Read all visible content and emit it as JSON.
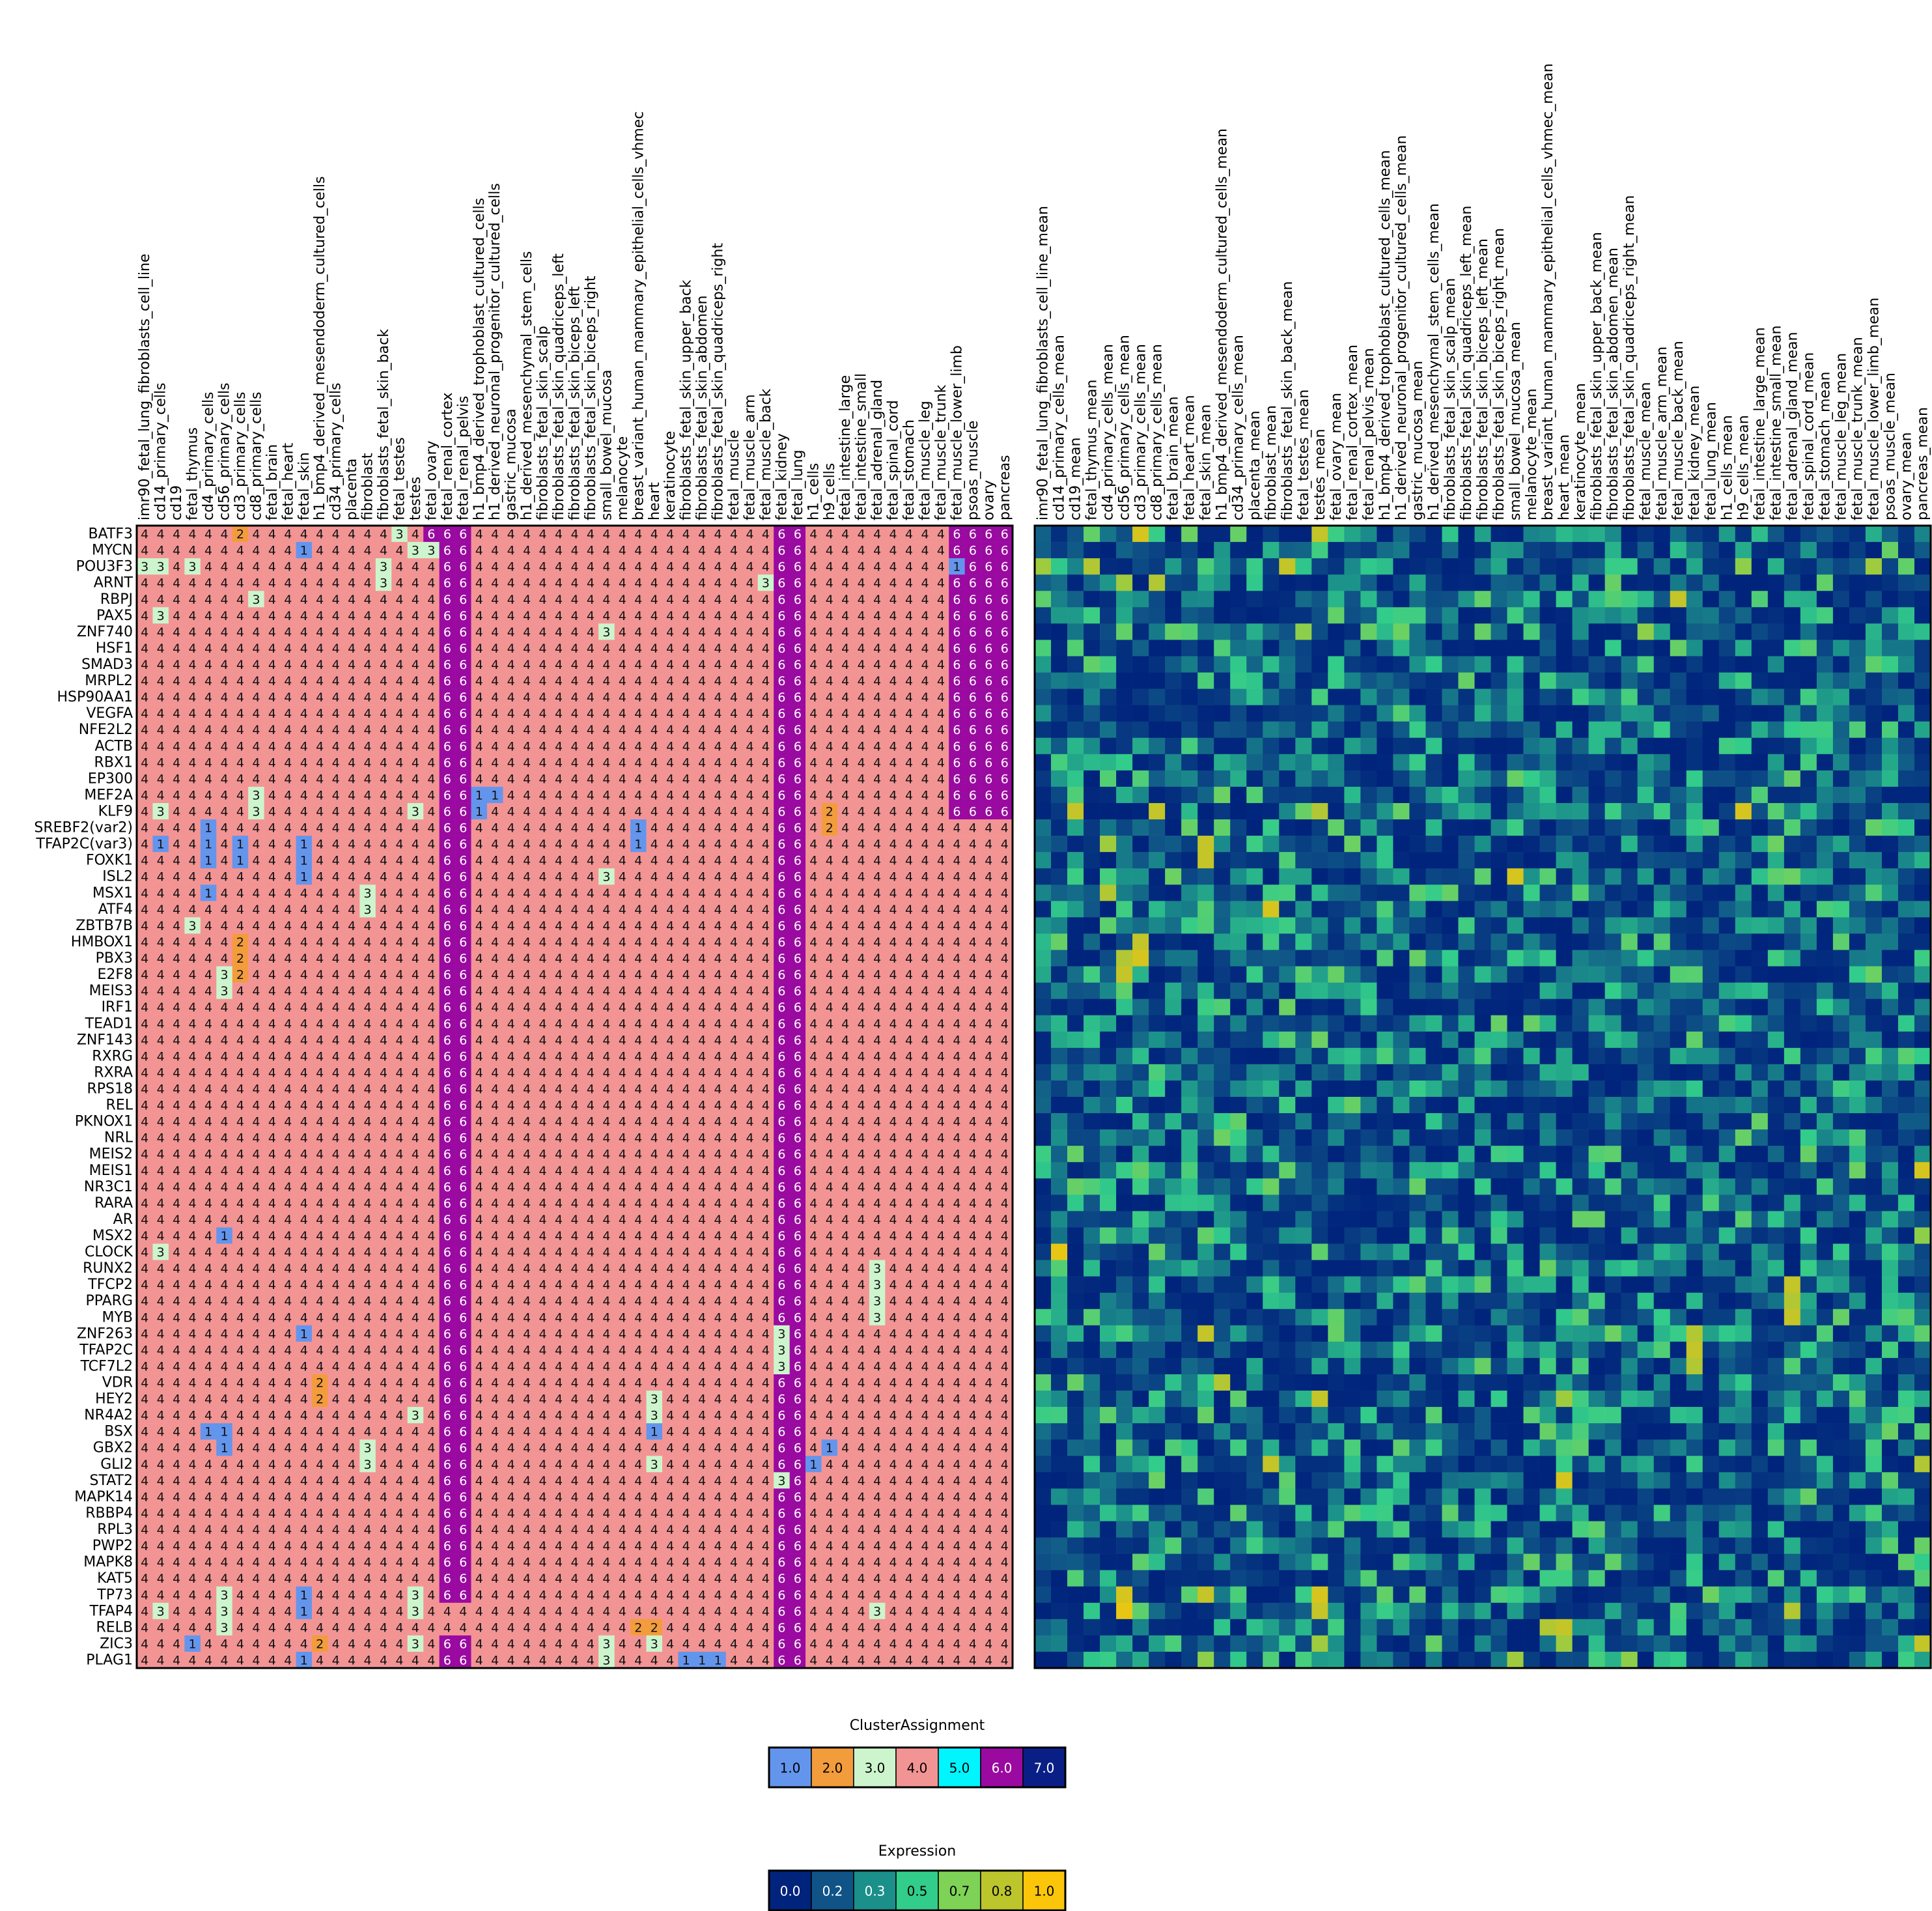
{
  "chart_data": [
    {
      "type": "heatmap",
      "title": "",
      "x_labels": [
        "imr90_fetal_lung_fibroblasts_cell_line",
        "cd14_primary_cells",
        "cd19",
        "fetal_thymus",
        "cd4_primary_cells",
        "cd56_primary_cells",
        "cd3_primary_cells",
        "cd8_primary_cells",
        "fetal_brain",
        "fetal_heart",
        "fetal_skin",
        "h1_bmp4_derived_mesendoderm_cultured_cells",
        "cd34_primary_cells",
        "placenta",
        "fibroblast",
        "fibroblasts_fetal_skin_back",
        "fetal_testes",
        "testes",
        "fetal_ovary",
        "fetal_renal_cortex",
        "fetal_renal_pelvis",
        "h1_bmp4_derived_trophoblast_cultured_cells",
        "h1_derived_neuronal_progenitor_cultured_cells",
        "gastric_mucosa",
        "h1_derived_mesenchymal_stem_cells",
        "fibroblasts_fetal_skin_scalp",
        "fibroblasts_fetal_skin_quadriceps_left",
        "fibroblasts_fetal_skin_biceps_left",
        "fibroblasts_fetal_skin_biceps_right",
        "small_bowel_mucosa",
        "melanocyte",
        "breast_variant_human_mammary_epithelial_cells_vhmec",
        "heart",
        "keratinocyte",
        "fibroblasts_fetal_skin_upper_back",
        "fibroblasts_fetal_skin_abdomen",
        "fibroblasts_fetal_skin_quadriceps_right",
        "fetal_muscle",
        "fetal_muscle_arm",
        "fetal_muscle_back",
        "fetal_kidney",
        "fetal_lung",
        "h1_cells",
        "h9_cells",
        "fetal_intestine_large",
        "fetal_intestine_small",
        "fetal_adrenal_gland",
        "fetal_spinal_cord",
        "fetal_stomach",
        "fetal_muscle_leg",
        "fetal_muscle_trunk",
        "fetal_muscle_lower_limb",
        "psoas_muscle",
        "ovary",
        "pancreas"
      ],
      "y_labels": [
        "BATF3",
        "MYCN",
        "POU3F3",
        "ARNT",
        "RBPJ",
        "PAX5",
        "ZNF740",
        "HSF1",
        "SMAD3",
        "MRPL2",
        "HSP90AA1",
        "VEGFA",
        "NFE2L2",
        "ACTB",
        "RBX1",
        "EP300",
        "MEF2A",
        "KLF9",
        "SREBF2(var2)",
        "TFAP2C(var3)",
        "FOXK1",
        "ISL2",
        "MSX1",
        "ATF4",
        "ZBTB7B",
        "HMBOX1",
        "PBX3",
        "E2F8",
        "MEIS3",
        "IRF1",
        "TEAD1",
        "ZNF143",
        "RXRG",
        "RXRA",
        "RPS18",
        "REL",
        "PKNOX1",
        "NRL",
        "MEIS2",
        "MEIS1",
        "NR3C1",
        "RARA",
        "AR",
        "MSX2",
        "CLOCK",
        "RUNX2",
        "TFCP2",
        "PPARG",
        "MYB",
        "ZNF263",
        "TFAP2C",
        "TCF7L2",
        "VDR",
        "HEY2",
        "NR4A2",
        "BSX",
        "GBX2",
        "GLI2",
        "STAT2",
        "MAPK14",
        "RBBP4",
        "RPL3",
        "PWP2",
        "MAPK8",
        "KAT5",
        "TP73",
        "TFAP4",
        "RELB",
        "ZIC3",
        "PLAG1"
      ],
      "default_value": 4,
      "column_runs": [
        {
          "col_start": 19,
          "col_end": 20,
          "row_start": 0,
          "row_end": 69,
          "value": 6
        },
        {
          "col_start": 40,
          "col_end": 41,
          "row_start": 0,
          "row_end": 69,
          "value": 6
        },
        {
          "col_start": 51,
          "col_end": 54,
          "row_start": 0,
          "row_end": 17,
          "value": 6
        },
        {
          "col_start": 18,
          "col_end": 18,
          "row_start": 0,
          "row_end": 1,
          "value": 6
        },
        {
          "col_start": 19,
          "col_end": 20,
          "row_start": 65,
          "row_end": 69,
          "value": 4
        }
      ],
      "overrides": [
        [
          0,
          6,
          2
        ],
        [
          0,
          16,
          3
        ],
        [
          1,
          10,
          1
        ],
        [
          1,
          17,
          3
        ],
        [
          1,
          18,
          3
        ],
        [
          2,
          0,
          3
        ],
        [
          2,
          1,
          3
        ],
        [
          2,
          3,
          3
        ],
        [
          2,
          15,
          3
        ],
        [
          2,
          51,
          1
        ],
        [
          3,
          15,
          3
        ],
        [
          3,
          39,
          3
        ],
        [
          4,
          7,
          3
        ],
        [
          5,
          1,
          3
        ],
        [
          6,
          29,
          3
        ],
        [
          16,
          7,
          3
        ],
        [
          16,
          21,
          1
        ],
        [
          16,
          22,
          1
        ],
        [
          17,
          1,
          3
        ],
        [
          17,
          7,
          3
        ],
        [
          17,
          17,
          3
        ],
        [
          17,
          21,
          1
        ],
        [
          17,
          43,
          2
        ],
        [
          18,
          4,
          1
        ],
        [
          18,
          31,
          1
        ],
        [
          18,
          43,
          2
        ],
        [
          19,
          1,
          1
        ],
        [
          19,
          4,
          1
        ],
        [
          19,
          6,
          1
        ],
        [
          19,
          10,
          1
        ],
        [
          19,
          31,
          1
        ],
        [
          20,
          4,
          1
        ],
        [
          20,
          6,
          1
        ],
        [
          20,
          10,
          1
        ],
        [
          21,
          10,
          1
        ],
        [
          21,
          29,
          3
        ],
        [
          22,
          4,
          1
        ],
        [
          22,
          14,
          3
        ],
        [
          23,
          14,
          3
        ],
        [
          24,
          3,
          3
        ],
        [
          25,
          6,
          2
        ],
        [
          26,
          6,
          2
        ],
        [
          27,
          5,
          3
        ],
        [
          27,
          6,
          2
        ],
        [
          28,
          5,
          3
        ],
        [
          43,
          5,
          1
        ],
        [
          44,
          1,
          3
        ],
        [
          45,
          46,
          3
        ],
        [
          46,
          46,
          3
        ],
        [
          47,
          46,
          3
        ],
        [
          48,
          46,
          3
        ],
        [
          49,
          10,
          1
        ],
        [
          49,
          40,
          3
        ],
        [
          50,
          40,
          3
        ],
        [
          51,
          40,
          3
        ],
        [
          52,
          11,
          2
        ],
        [
          53,
          11,
          2
        ],
        [
          53,
          32,
          3
        ],
        [
          54,
          17,
          3
        ],
        [
          54,
          32,
          3
        ],
        [
          55,
          4,
          1
        ],
        [
          55,
          5,
          1
        ],
        [
          55,
          32,
          1
        ],
        [
          56,
          5,
          1
        ],
        [
          56,
          14,
          3
        ],
        [
          56,
          42,
          4
        ],
        [
          56,
          43,
          1
        ],
        [
          57,
          14,
          3
        ],
        [
          57,
          32,
          3
        ],
        [
          57,
          42,
          1
        ],
        [
          58,
          40,
          3
        ],
        [
          65,
          5,
          3
        ],
        [
          65,
          10,
          1
        ],
        [
          65,
          17,
          3
        ],
        [
          65,
          19,
          6
        ],
        [
          65,
          20,
          6
        ],
        [
          66,
          1,
          3
        ],
        [
          66,
          5,
          3
        ],
        [
          66,
          10,
          1
        ],
        [
          66,
          17,
          3
        ],
        [
          66,
          46,
          3
        ],
        [
          67,
          5,
          3
        ],
        [
          67,
          31,
          2
        ],
        [
          67,
          32,
          2
        ],
        [
          68,
          3,
          1
        ],
        [
          68,
          11,
          2
        ],
        [
          68,
          17,
          3
        ],
        [
          68,
          29,
          3
        ],
        [
          68,
          32,
          3
        ],
        [
          68,
          19,
          6
        ],
        [
          68,
          20,
          6
        ],
        [
          69,
          10,
          1
        ],
        [
          69,
          29,
          3
        ],
        [
          69,
          34,
          1
        ],
        [
          69,
          35,
          1
        ],
        [
          69,
          36,
          1
        ],
        [
          69,
          19,
          6
        ],
        [
          69,
          20,
          6
        ]
      ],
      "legend": {
        "title": "ClusterAssignment",
        "position": "bottom",
        "values": [
          "1.0",
          "2.0",
          "3.0",
          "4.0",
          "5.0",
          "6.0",
          "7.0"
        ]
      },
      "colors": {
        "1.0": "#6495ed",
        "2.0": "#f39c3c",
        "3.0": "#cdf5cd",
        "4.0": "#f39494",
        "5.0": "#00f5ff",
        "6.0": "#9a0aa0",
        "7.0": "#0a1f86"
      }
    },
    {
      "type": "heatmap",
      "title": "",
      "x_labels": [
        "imr90_fetal_lung_fibroblasts_cell_line_mean",
        "cd14_primary_cells_mean",
        "cd19_mean",
        "fetal_thymus_mean",
        "cd4_primary_cells_mean",
        "cd56_primary_cells_mean",
        "cd3_primary_cells_mean",
        "cd8_primary_cells_mean",
        "fetal_brain_mean",
        "fetal_heart_mean",
        "fetal_skin_mean",
        "h1_bmp4_derived_mesendoderm_cultured_cells_mean",
        "cd34_primary_cells_mean",
        "placenta_mean",
        "fibroblast_mean",
        "fibroblasts_fetal_skin_back_mean",
        "fetal_testes_mean",
        "testes_mean",
        "fetal_ovary_mean",
        "fetal_renal_cortex_mean",
        "fetal_renal_pelvis_mean",
        "h1_bmp4_derived_trophoblast_cultured_cells_mean",
        "h1_derived_neuronal_progenitor_cultured_cells_mean",
        "gastric_mucosa_mean",
        "h1_derived_mesenchymal_stem_cells_mean",
        "fibroblasts_fetal_skin_scalp_mean",
        "fibroblasts_fetal_skin_quadriceps_left_mean",
        "fibroblasts_fetal_skin_biceps_left_mean",
        "fibroblasts_fetal_skin_biceps_right_mean",
        "small_bowel_mucosa_mean",
        "melanocyte_mean",
        "breast_variant_human_mammary_epithelial_cells_vhmec_mean",
        "heart_mean",
        "keratinocyte_mean",
        "fibroblasts_fetal_skin_upper_back_mean",
        "fibroblasts_fetal_skin_abdomen_mean",
        "fibroblasts_fetal_skin_quadriceps_right_mean",
        "fetal_muscle_mean",
        "fetal_muscle_arm_mean",
        "fetal_muscle_back_mean",
        "fetal_kidney_mean",
        "fetal_lung_mean",
        "h1_cells_mean",
        "h9_cells_mean",
        "fetal_intestine_large_mean",
        "fetal_intestine_small_mean",
        "fetal_adrenal_gland_mean",
        "fetal_spinal_cord_mean",
        "fetal_stomach_mean",
        "fetal_muscle_leg_mean",
        "fetal_muscle_trunk_mean",
        "fetal_muscle_lower_limb_mean",
        "psoas_muscle_mean",
        "ovary_mean",
        "pancreas_mean"
      ],
      "y_labels": "same as cluster heatmap rows",
      "value_range": [
        0.0,
        1.0
      ],
      "generation_seed": 7,
      "highlights": [
        [
          0,
          6,
          0.9
        ],
        [
          0,
          17,
          0.85
        ],
        [
          2,
          0,
          0.75
        ],
        [
          2,
          3,
          0.8
        ],
        [
          2,
          15,
          0.85
        ],
        [
          2,
          43,
          0.7
        ],
        [
          2,
          51,
          0.75
        ],
        [
          3,
          5,
          0.75
        ],
        [
          3,
          7,
          0.8
        ],
        [
          4,
          39,
          0.85
        ],
        [
          6,
          16,
          0.7
        ],
        [
          6,
          37,
          0.7
        ],
        [
          17,
          2,
          0.85
        ],
        [
          17,
          7,
          0.85
        ],
        [
          17,
          17,
          0.8
        ],
        [
          17,
          43,
          0.9
        ],
        [
          19,
          4,
          0.75
        ],
        [
          19,
          10,
          0.85
        ],
        [
          20,
          10,
          0.85
        ],
        [
          21,
          29,
          0.9
        ],
        [
          22,
          4,
          0.8
        ],
        [
          23,
          14,
          0.9
        ],
        [
          25,
          6,
          0.85
        ],
        [
          26,
          6,
          0.9
        ],
        [
          26,
          5,
          0.8
        ],
        [
          27,
          5,
          0.85
        ],
        [
          39,
          54,
          0.9
        ],
        [
          43,
          54,
          0.7
        ],
        [
          44,
          1,
          0.95
        ],
        [
          46,
          46,
          0.85
        ],
        [
          47,
          46,
          0.8
        ],
        [
          48,
          46,
          0.85
        ],
        [
          49,
          10,
          0.85
        ],
        [
          49,
          40,
          0.8
        ],
        [
          50,
          40,
          0.85
        ],
        [
          51,
          40,
          0.8
        ],
        [
          52,
          11,
          0.8
        ],
        [
          53,
          17,
          0.85
        ],
        [
          53,
          32,
          0.75
        ],
        [
          57,
          14,
          0.85
        ],
        [
          57,
          54,
          0.8
        ],
        [
          58,
          32,
          0.9
        ],
        [
          65,
          5,
          0.9
        ],
        [
          65,
          10,
          0.85
        ],
        [
          65,
          17,
          0.9
        ],
        [
          66,
          5,
          0.95
        ],
        [
          66,
          17,
          0.85
        ],
        [
          66,
          46,
          0.8
        ],
        [
          67,
          31,
          0.8
        ],
        [
          67,
          32,
          0.85
        ],
        [
          68,
          17,
          0.75
        ],
        [
          68,
          54,
          0.85
        ],
        [
          68,
          32,
          0.75
        ],
        [
          69,
          10,
          0.7
        ],
        [
          69,
          29,
          0.75
        ],
        [
          69,
          36,
          0.7
        ]
      ],
      "legend": {
        "title": "Expression",
        "position": "bottom",
        "values": [
          "0.0",
          "0.2",
          "0.3",
          "0.5",
          "0.7",
          "0.8",
          "1.0"
        ]
      },
      "colors": {
        "0.0": "#00237c",
        "0.2": "#0f5387",
        "0.3": "#1b8f8a",
        "0.5": "#32cc8b",
        "0.7": "#7ed255",
        "0.8": "#bcc52c",
        "1.0": "#fbc60a"
      }
    }
  ]
}
